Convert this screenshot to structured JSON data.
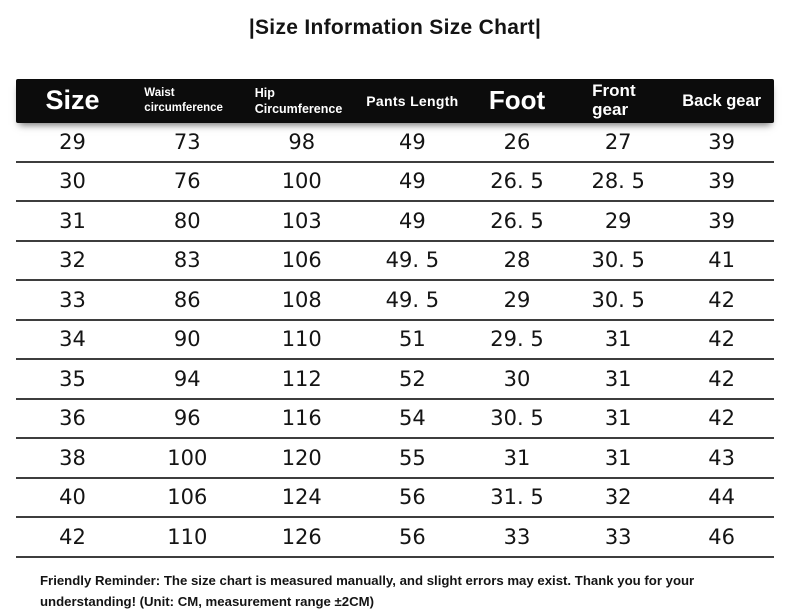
{
  "title": "|Size Information Size Chart|",
  "table": {
    "columns": [
      "Size",
      "Waist circumference",
      "Hip Circumference",
      "Pants Length",
      "Foot",
      "Front gear",
      "Back gear"
    ],
    "rows": [
      [
        "29",
        "73",
        "98",
        "49",
        "26",
        "27",
        "39"
      ],
      [
        "30",
        "76",
        "100",
        "49",
        "26. 5",
        "28. 5",
        "39"
      ],
      [
        "31",
        "80",
        "103",
        "49",
        "26. 5",
        "29",
        "39"
      ],
      [
        "32",
        "83",
        "106",
        "49. 5",
        "28",
        "30. 5",
        "41"
      ],
      [
        "33",
        "86",
        "108",
        "49. 5",
        "29",
        "30. 5",
        "42"
      ],
      [
        "34",
        "90",
        "110",
        "51",
        "29. 5",
        "31",
        "42"
      ],
      [
        "35",
        "94",
        "112",
        "52",
        "30",
        "31",
        "42"
      ],
      [
        "36",
        "96",
        "116",
        "54",
        "30. 5",
        "31",
        "42"
      ],
      [
        "38",
        "100",
        "120",
        "55",
        "31",
        "31",
        "43"
      ],
      [
        "40",
        "106",
        "124",
        "56",
        "31. 5",
        "32",
        "44"
      ],
      [
        "42",
        "110",
        "126",
        "56",
        "33",
        "33",
        "46"
      ]
    ]
  },
  "footer": {
    "note": "Friendly Reminder: The size chart is measured manually, and slight errors may exist. Thank you for your understanding! (Unit: CM, measurement range ±2CM)"
  },
  "colors": {
    "header_bg": "#0c0c0c",
    "header_text": "#ffffff",
    "row_line": "#3e3e3e",
    "text": "#141414",
    "background": "#ffffff"
  },
  "chart_data": {
    "type": "table",
    "title": "|Size Information Size Chart|",
    "columns": [
      "Size",
      "Waist circumference",
      "Hip Circumference",
      "Pants Length",
      "Foot",
      "Front gear",
      "Back gear"
    ],
    "rows": [
      [
        29,
        73,
        98,
        49,
        26,
        27,
        39
      ],
      [
        30,
        76,
        100,
        49,
        26.5,
        28.5,
        39
      ],
      [
        31,
        80,
        103,
        49,
        26.5,
        29,
        39
      ],
      [
        32,
        83,
        106,
        49.5,
        28,
        30.5,
        41
      ],
      [
        33,
        86,
        108,
        49.5,
        29,
        30.5,
        42
      ],
      [
        34,
        90,
        110,
        51,
        29.5,
        31,
        42
      ],
      [
        35,
        94,
        112,
        52,
        30,
        31,
        42
      ],
      [
        36,
        96,
        116,
        54,
        30.5,
        31,
        42
      ],
      [
        38,
        100,
        120,
        55,
        31,
        31,
        43
      ],
      [
        40,
        106,
        124,
        56,
        31.5,
        32,
        44
      ],
      [
        42,
        110,
        126,
        56,
        33,
        33,
        46
      ]
    ],
    "unit": "CM",
    "note": "Friendly Reminder: The size chart is measured manually, and slight errors may exist. Thank you for your understanding! (Unit: CM, measurement range ±2CM)"
  }
}
